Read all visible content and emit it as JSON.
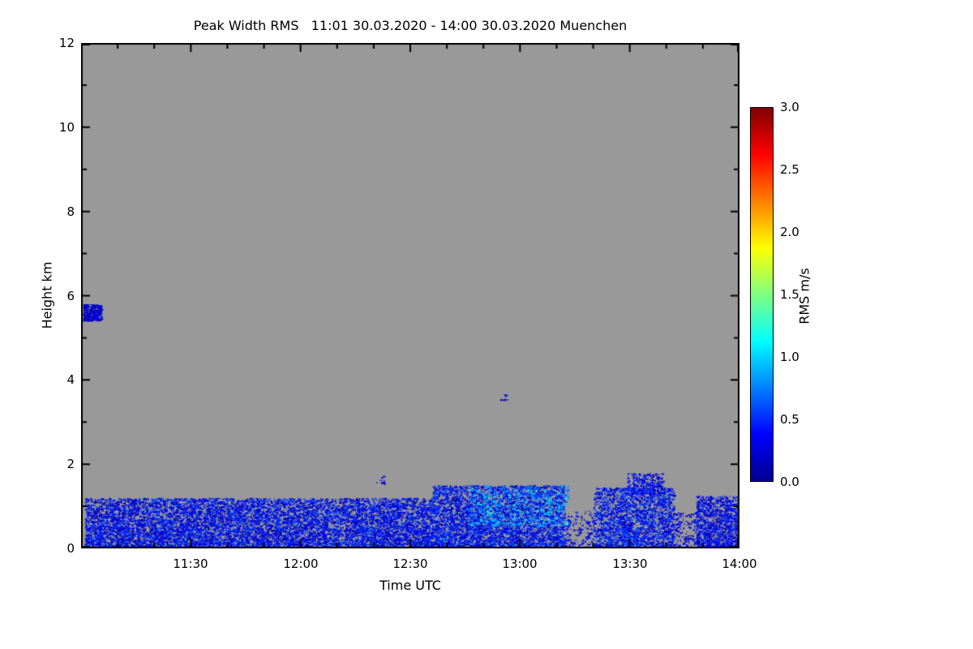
{
  "chart_data": {
    "type": "heatmap",
    "title": "Peak Width RMS   11:01 30.03.2020 - 14:00 30.03.2020 Muenchen",
    "xlabel": "Time UTC",
    "ylabel": "Height km",
    "colorbar_label": "RMS m/s",
    "x_ticks": [
      "11:30",
      "12:00",
      "12:30",
      "13:00",
      "13:30",
      "14:00"
    ],
    "x_tick_minutes": [
      30,
      60,
      90,
      120,
      150,
      180
    ],
    "x_minor_step_minutes": 10,
    "x_total_minutes": 180,
    "y_ticks": [
      "12",
      "10",
      "8",
      "6",
      "4",
      "2",
      "0"
    ],
    "y_tick_km": [
      12,
      10,
      8,
      6,
      4,
      2,
      0
    ],
    "y_minor_step_km": 1,
    "y_max_km": 12,
    "colorbar_ticks": [
      "3.0",
      "2.5",
      "2.0",
      "1.5",
      "1.0",
      "0.5",
      "0.0"
    ],
    "colorbar_range": [
      0,
      3
    ],
    "no_data_color": "#999999",
    "frame_color": "#000000",
    "colormap_stops": [
      {
        "p": 0.0,
        "c": [
          0,
          0,
          143
        ]
      },
      {
        "p": 0.125,
        "c": [
          0,
          0,
          255
        ]
      },
      {
        "p": 0.375,
        "c": [
          0,
          255,
          255
        ]
      },
      {
        "p": 0.625,
        "c": [
          255,
          255,
          0
        ]
      },
      {
        "p": 0.875,
        "c": [
          255,
          0,
          0
        ]
      },
      {
        "p": 1.0,
        "c": [
          128,
          0,
          0
        ]
      }
    ],
    "seed": 20200330,
    "regions": [
      {
        "name": "boundary-layer-a",
        "t": [
          1,
          96
        ],
        "h": [
          0.02,
          1.2
        ],
        "points": 9500,
        "v": [
          0.03,
          0.65
        ]
      },
      {
        "name": "boundary-layer-b",
        "t": [
          96,
          132
        ],
        "h": [
          0.02,
          1.5
        ],
        "points": 4500,
        "v": [
          0.03,
          0.7
        ]
      },
      {
        "name": "cyan-streaks-13utc",
        "t": [
          106,
          133
        ],
        "h": [
          0.55,
          1.5
        ],
        "points": 550,
        "v": [
          0.6,
          1.15
        ]
      },
      {
        "name": "sparse-gap-1",
        "t": [
          132,
          140
        ],
        "h": [
          0.02,
          0.9
        ],
        "points": 160,
        "v": [
          0.05,
          0.5
        ]
      },
      {
        "name": "boundary-layer-c",
        "t": [
          140,
          162
        ],
        "h": [
          0.02,
          1.45
        ],
        "points": 2400,
        "v": [
          0.04,
          0.7
        ]
      },
      {
        "name": "plumes-1330",
        "t": [
          149,
          159
        ],
        "h": [
          1.3,
          1.8
        ],
        "points": 280,
        "v": [
          0.08,
          0.6
        ]
      },
      {
        "name": "sparse-gap-2",
        "t": [
          162,
          168
        ],
        "h": [
          0.02,
          0.85
        ],
        "points": 140,
        "v": [
          0.05,
          0.5
        ]
      },
      {
        "name": "boundary-layer-d",
        "t": [
          168,
          180
        ],
        "h": [
          0.02,
          1.25
        ],
        "points": 1300,
        "v": [
          0.04,
          0.6
        ]
      },
      {
        "name": "elevated-patch-5p6km",
        "t": [
          0.5,
          5.5
        ],
        "h": [
          5.42,
          5.8
        ],
        "points": 320,
        "v": [
          0.02,
          0.4
        ]
      },
      {
        "name": "speck-3p6km",
        "t": [
          114.5,
          116.5
        ],
        "h": [
          3.52,
          3.68
        ],
        "points": 9,
        "v": [
          0.15,
          0.45
        ]
      },
      {
        "name": "specks-above-layer",
        "t": [
          80.5,
          83
        ],
        "h": [
          1.55,
          1.75
        ],
        "points": 10,
        "v": [
          0.1,
          0.4
        ]
      }
    ]
  }
}
